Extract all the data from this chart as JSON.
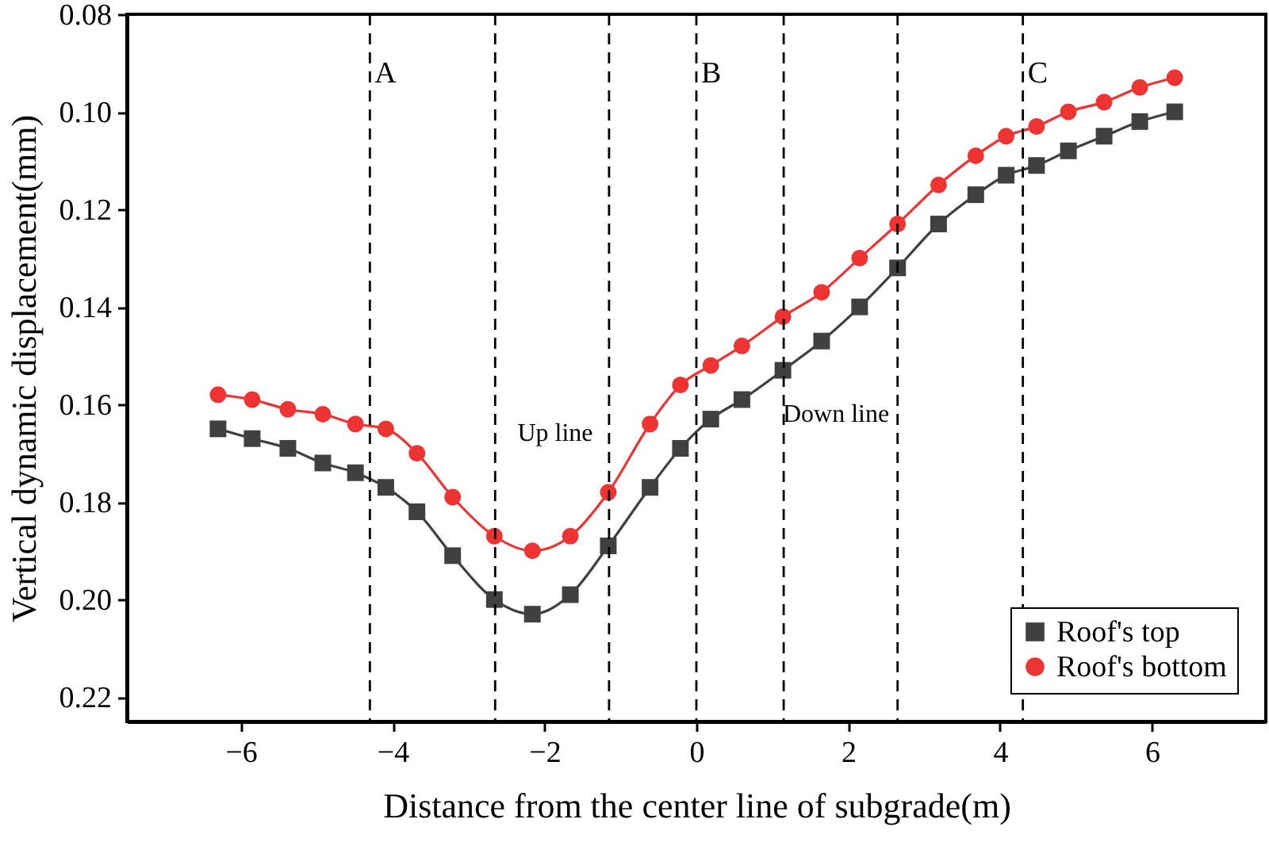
{
  "chart_data": {
    "type": "line",
    "xlabel": "Distance from the center line of subgrade(m)",
    "ylabel": "Vertical dynamic displacement(mm)",
    "x": [
      -6.3,
      -5.85,
      -5.38,
      -4.92,
      -4.49,
      -4.09,
      -3.68,
      -3.21,
      -2.66,
      -2.16,
      -1.66,
      -1.16,
      -0.61,
      -0.21,
      0.19,
      0.6,
      1.14,
      1.65,
      2.15,
      2.65,
      3.19,
      3.68,
      4.08,
      4.48,
      4.9,
      5.37,
      5.84,
      6.3
    ],
    "series": [
      {
        "name": "Roof's top",
        "color": "#404040",
        "marker": "square",
        "values": [
          0.165,
          0.167,
          0.169,
          0.172,
          0.174,
          0.177,
          0.182,
          0.191,
          0.2,
          0.203,
          0.199,
          0.189,
          0.177,
          0.169,
          0.163,
          0.159,
          0.153,
          0.147,
          0.14,
          0.132,
          0.123,
          0.117,
          0.113,
          0.111,
          0.108,
          0.105,
          0.102,
          0.1
        ]
      },
      {
        "name": "Roof's bottom",
        "color": "#ee3333",
        "marker": "circle",
        "values": [
          0.158,
          0.159,
          0.161,
          0.162,
          0.164,
          0.165,
          0.17,
          0.179,
          0.187,
          0.19,
          0.187,
          0.178,
          0.164,
          0.156,
          0.152,
          0.148,
          0.142,
          0.137,
          0.13,
          0.123,
          0.115,
          0.109,
          0.105,
          0.103,
          0.1,
          0.098,
          0.095,
          0.093
        ]
      }
    ],
    "xlim": [
      -7.5,
      7.5
    ],
    "xticks": [
      -6,
      -4,
      -2,
      0,
      2,
      4,
      6
    ],
    "ylim": [
      0.225,
      0.08
    ],
    "yticks": [
      0.08,
      {
        "value": 0.1,
        "label": "0.10"
      },
      0.12,
      0.14,
      0.16,
      0.18,
      {
        "value": 0.2,
        "label": "0.20"
      },
      0.22
    ],
    "ref_lines": [
      {
        "axis": "x",
        "value": -4.3,
        "label": "A",
        "line_style": "dashed",
        "color": "#000000"
      },
      {
        "axis": "x",
        "value": -2.65,
        "line_style": "dashed",
        "color": "#000000"
      },
      {
        "axis": "x",
        "value": -1.15,
        "line_style": "dashed",
        "color": "#000000"
      },
      {
        "axis": "x",
        "value": 0,
        "label": "B",
        "line_style": "dashed",
        "color": "#000000"
      },
      {
        "axis": "x",
        "value": 1.15,
        "line_style": "dashed",
        "color": "#000000"
      },
      {
        "axis": "x",
        "value": 2.65,
        "line_style": "dashed",
        "color": "#000000"
      },
      {
        "axis": "x",
        "value": 4.3,
        "label": "C",
        "line_style": "dashed",
        "color": "#000000"
      }
    ],
    "annotations": [
      "Up line",
      "Down line"
    ],
    "legend": "bottom right",
    "grid": false
  }
}
